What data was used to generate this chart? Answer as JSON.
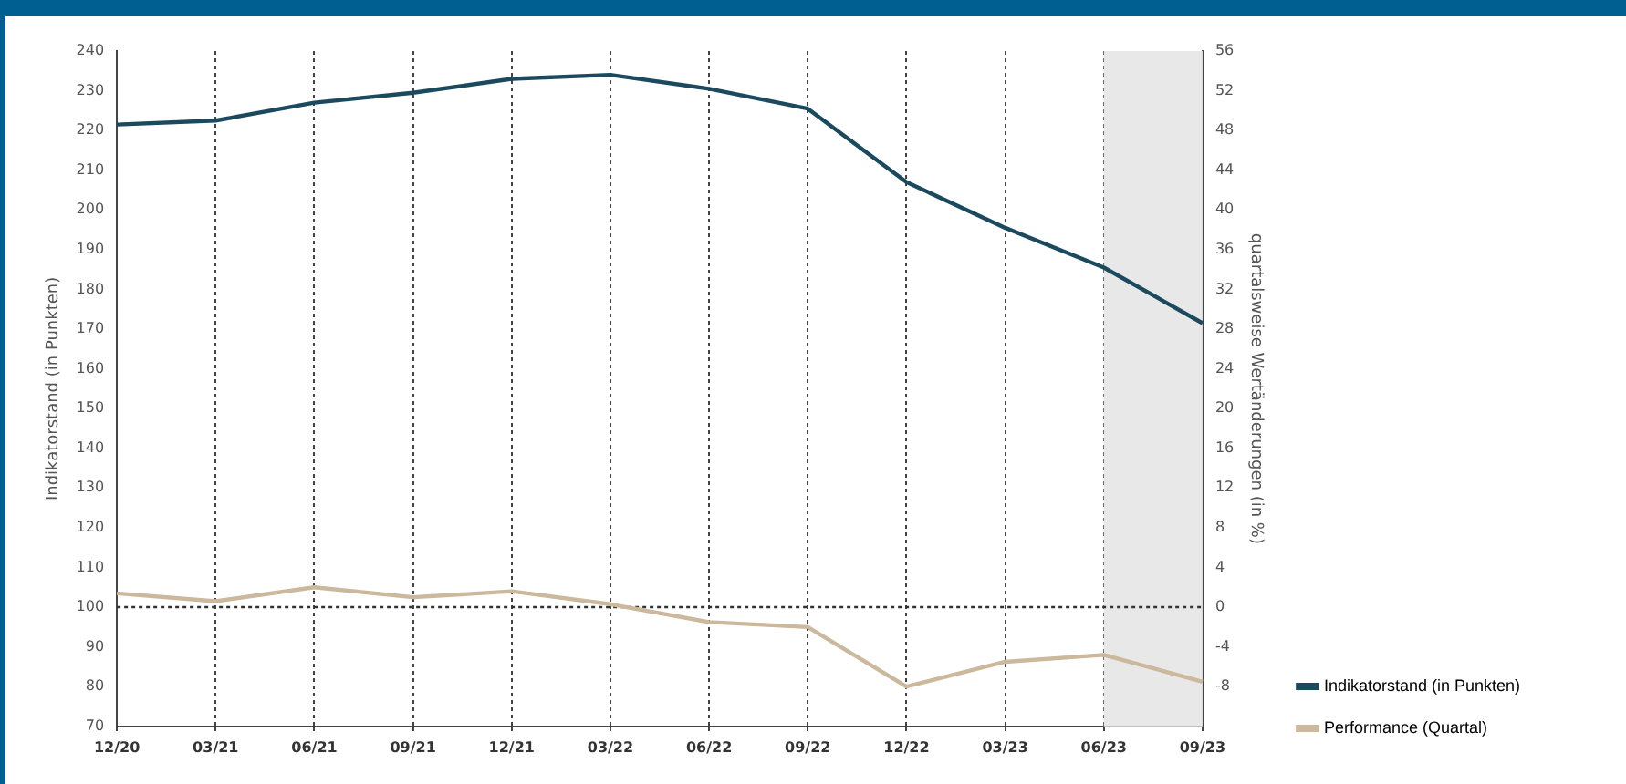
{
  "chart_data": {
    "type": "line",
    "categories": [
      "12/20",
      "03/21",
      "06/21",
      "09/21",
      "12/21",
      "03/22",
      "06/22",
      "09/22",
      "12/22",
      "03/23",
      "06/23",
      "09/23"
    ],
    "ylabel": "Indikatorstand (in Punkten)",
    "y2label": "quartalsweise Wertänderungen (in %)",
    "ylim": [
      70,
      240
    ],
    "yticks": [
      70,
      80,
      90,
      100,
      110,
      120,
      130,
      140,
      150,
      160,
      170,
      180,
      190,
      200,
      210,
      220,
      230,
      240
    ],
    "y2lim": [
      -12,
      56
    ],
    "y2ticks": [
      -8,
      -4,
      0,
      4,
      8,
      12,
      16,
      20,
      24,
      28,
      32,
      36,
      40,
      44,
      48,
      52,
      56
    ],
    "series": [
      {
        "name": "Indikatorstand (in Punkten)",
        "color": "#1b4a5e",
        "values": [
          221.5,
          222.5,
          227,
          229.5,
          233,
          234,
          230.5,
          225.5,
          207,
          195.5,
          185.5,
          171.5
        ]
      },
      {
        "name": "Performance (Quartal)",
        "color": "#cbb89d",
        "axis": "y2",
        "values": [
          1.4,
          0.6,
          2.0,
          1.0,
          1.6,
          0.3,
          -1.5,
          -2.0,
          -8.0,
          -5.5,
          -4.8,
          -7.5
        ]
      }
    ],
    "ref_lines": [
      {
        "axis": "y2",
        "value": 0,
        "color": "#333333",
        "line_style": "dotted"
      }
    ],
    "bands": [
      {
        "axis": "x",
        "from": "06/23",
        "to": "09/23",
        "color": "#e8e8e8"
      }
    ],
    "grid": "x",
    "legend": "bottom right",
    "marker": "none",
    "line_style": "solid"
  }
}
